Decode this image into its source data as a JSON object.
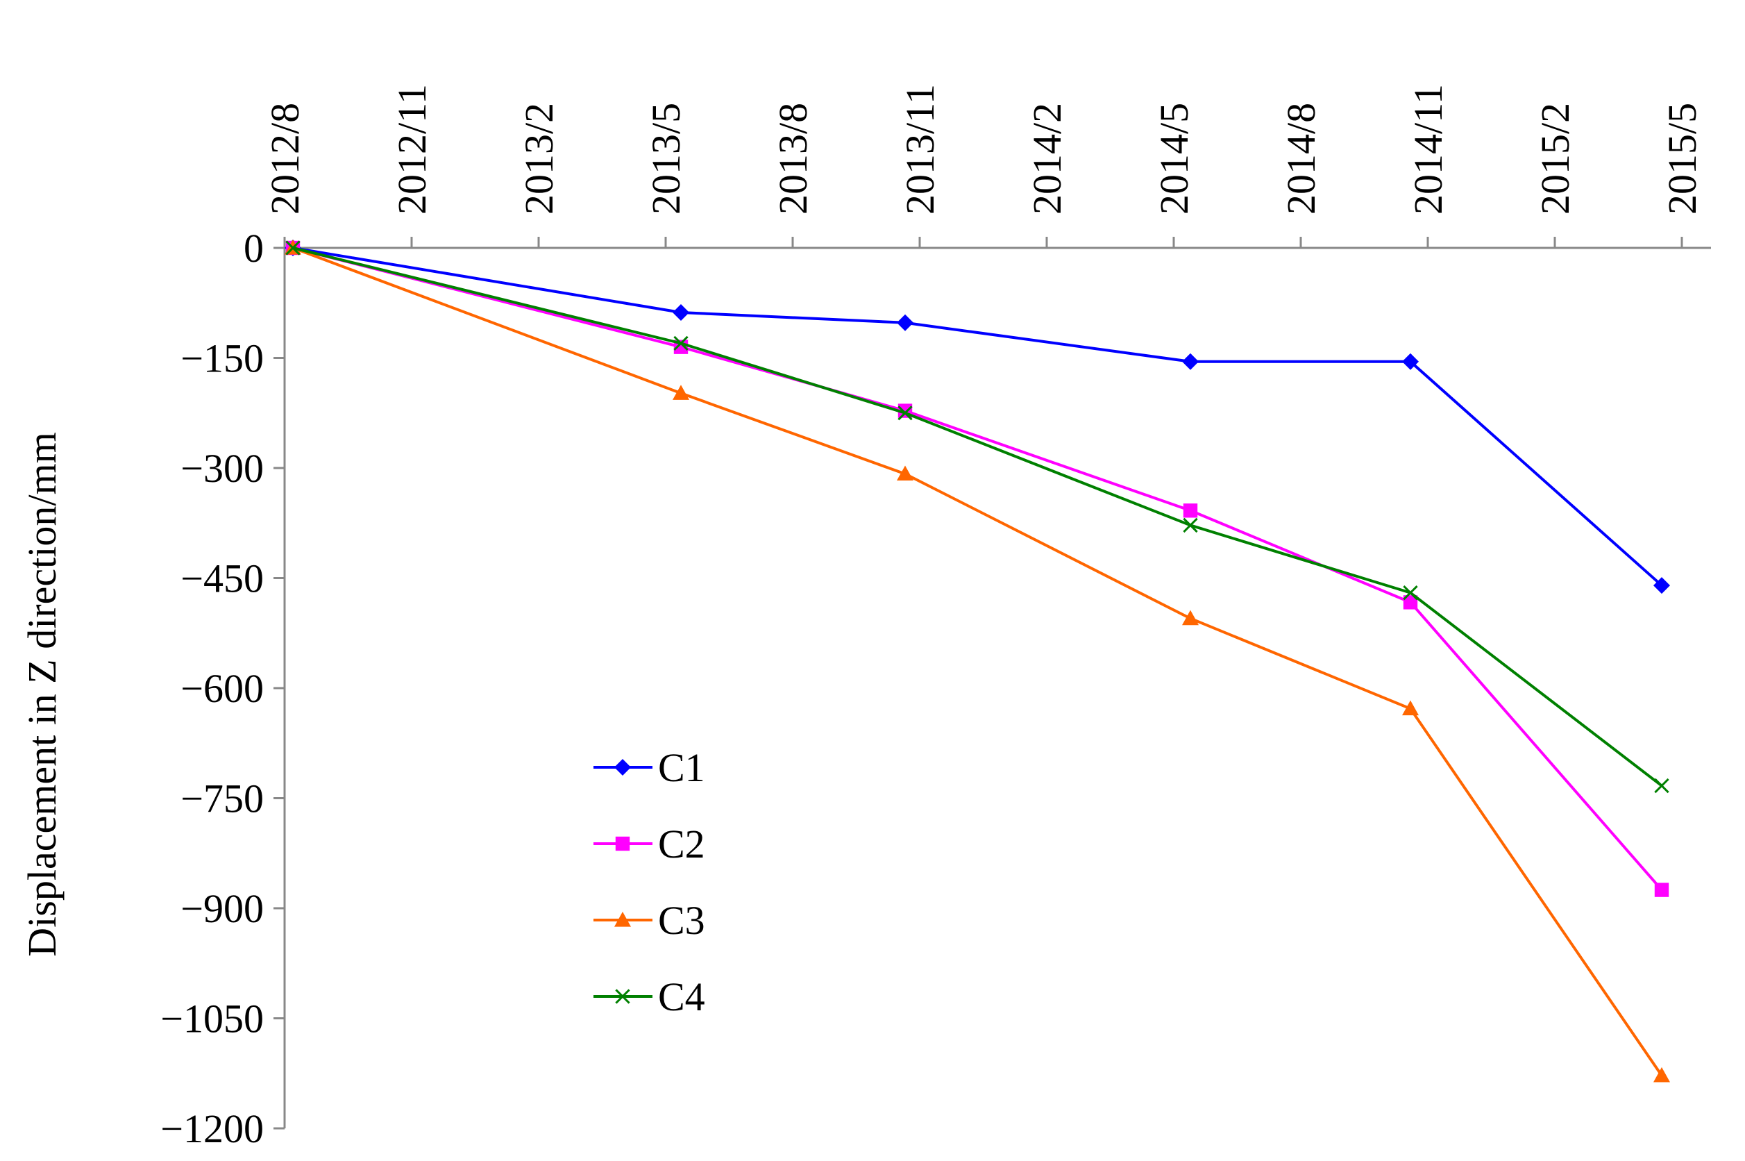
{
  "chart_data": {
    "type": "line",
    "title": "",
    "xlabel": "",
    "ylabel": "Displacement in Z direction/mm",
    "x_axis_position": "top",
    "grid": false,
    "legend_position": "lower-left inside plot",
    "xticks": [
      "2012/8",
      "2012/11",
      "2013/2",
      "2013/5",
      "2013/8",
      "2013/11",
      "2014/2",
      "2014/5",
      "2014/8",
      "2014/11",
      "2015/2",
      "2015/5"
    ],
    "xlim": [
      "2012-08-01",
      "2015-05-01"
    ],
    "ylim": [
      -1200,
      0
    ],
    "yticks": [
      0,
      -150,
      -300,
      -450,
      -600,
      -750,
      -900,
      -1050,
      -1200
    ],
    "ytick_labels": [
      "0",
      "−150",
      "−300",
      "−450",
      "−600",
      "−750",
      "−900",
      "−1050",
      "−1200"
    ],
    "x": [
      "2012-08-07",
      "2013-05-12",
      "2013-10-21",
      "2014-05-13",
      "2014-10-19",
      "2015-04-17"
    ],
    "series": [
      {
        "name": "C1",
        "color": "#0000ff",
        "marker": "diamond",
        "values": [
          0,
          -88,
          -102,
          -155,
          -155,
          -460
        ]
      },
      {
        "name": "C2",
        "color": "#ff00ff",
        "marker": "square",
        "values": [
          0,
          -135,
          -222,
          -358,
          -483,
          -875
        ]
      },
      {
        "name": "C3",
        "color": "#ff6600",
        "marker": "triangle",
        "values": [
          0,
          -198,
          -308,
          -505,
          -628,
          -1128
        ]
      },
      {
        "name": "C4",
        "color": "#008000",
        "marker": "x",
        "values": [
          0,
          -130,
          -225,
          -378,
          -470,
          -733
        ]
      }
    ]
  }
}
